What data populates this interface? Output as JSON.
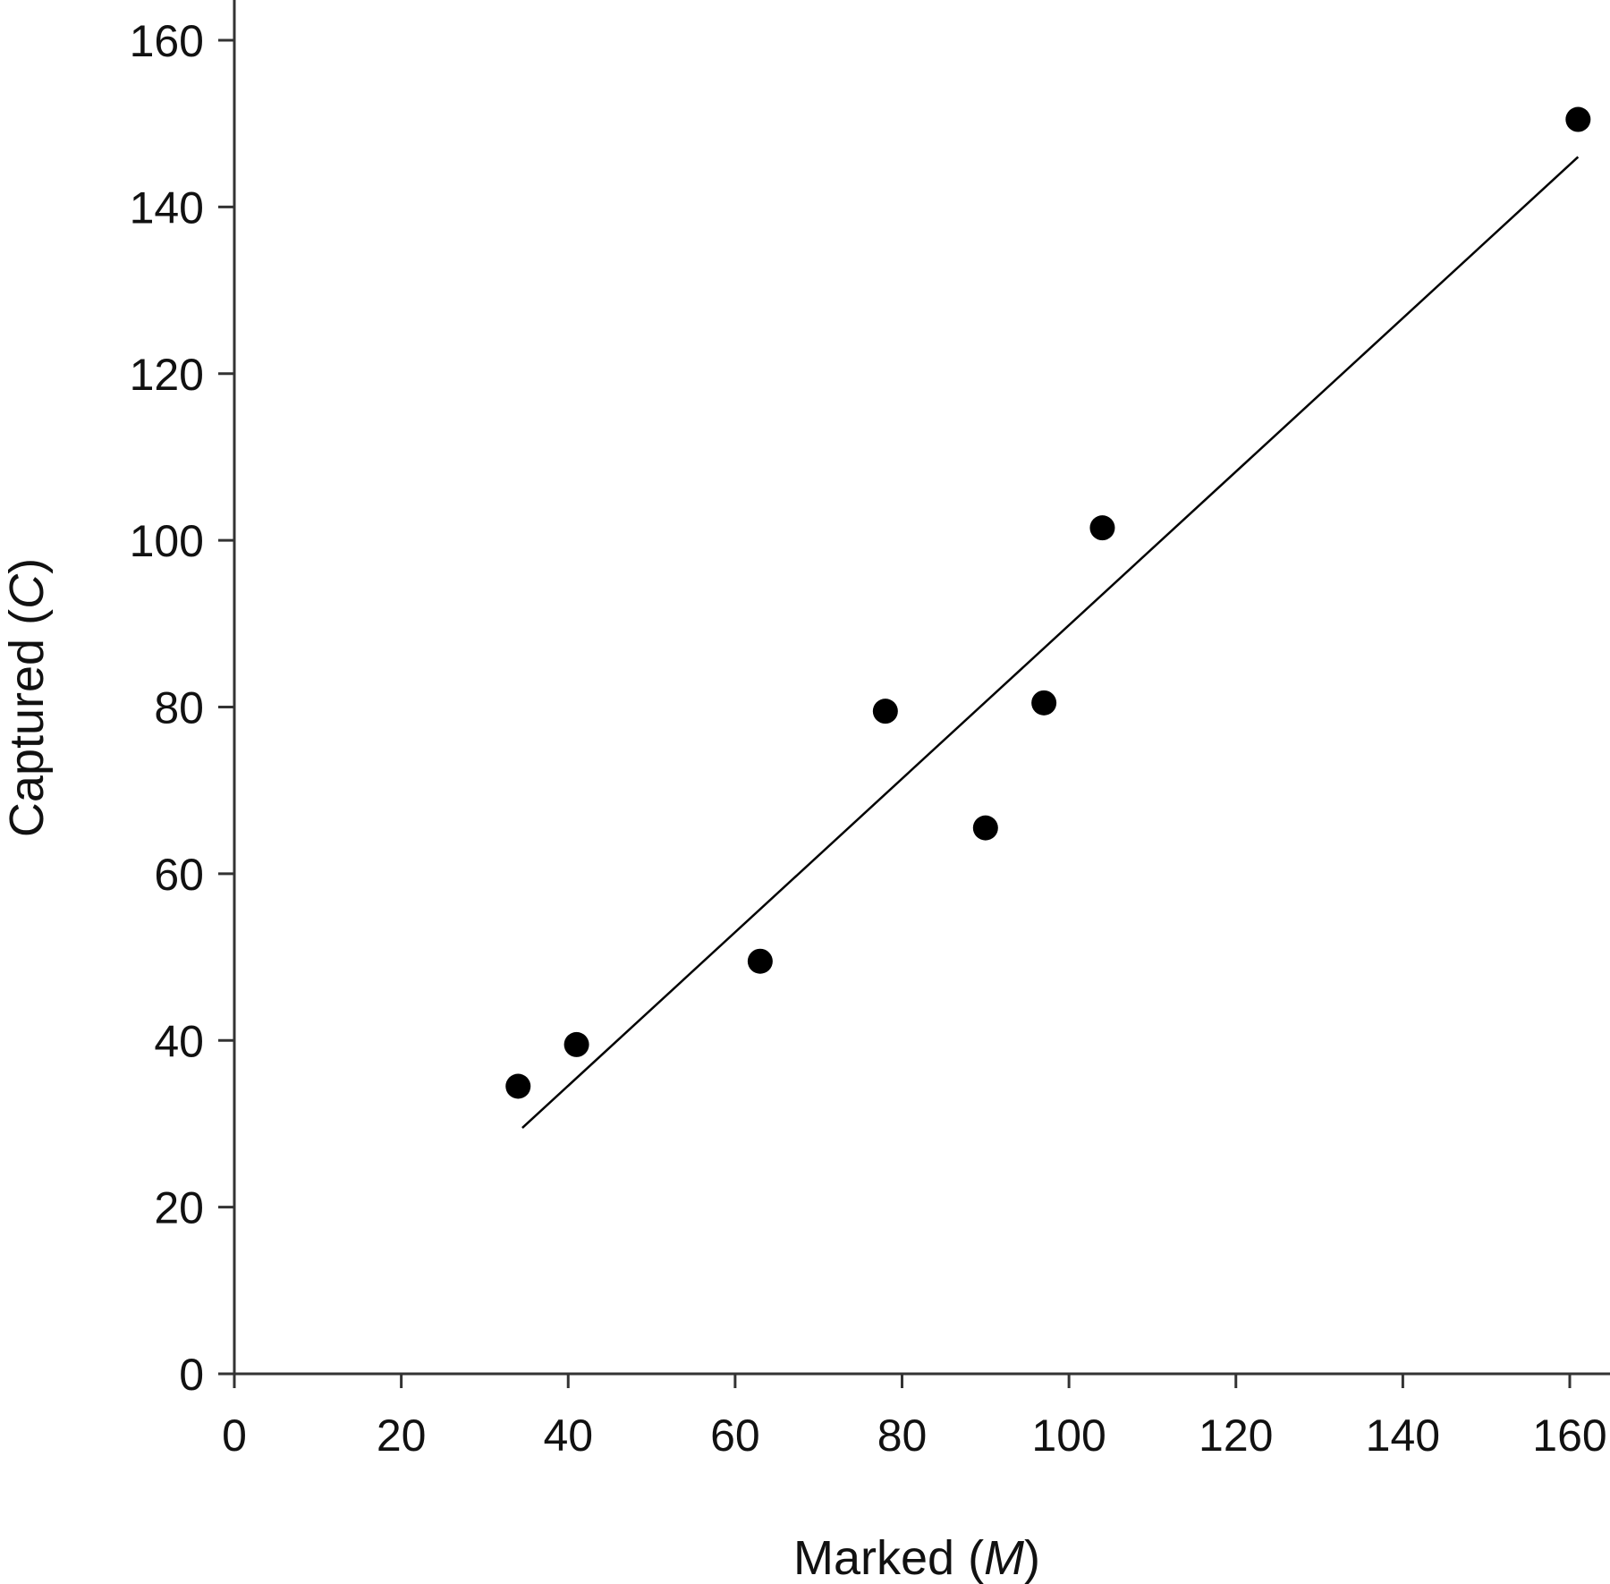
{
  "chart_data": {
    "type": "scatter",
    "title": "",
    "xlabel": {
      "text": "Marked ",
      "var": "M",
      "open": "(",
      "close": ")"
    },
    "ylabel": {
      "text": "Captured ",
      "var": "C",
      "open": "(",
      "close": ")"
    },
    "xlim": [
      0,
      160
    ],
    "ylim": [
      0,
      160
    ],
    "xticks": [
      0,
      20,
      40,
      60,
      80,
      100,
      120,
      140,
      160
    ],
    "yticks": [
      0,
      20,
      40,
      60,
      80,
      100,
      120,
      140,
      160
    ],
    "grid": false,
    "series": [
      {
        "points": [
          {
            "x": 34,
            "y": 34.5
          },
          {
            "x": 41,
            "y": 39.5
          },
          {
            "x": 63,
            "y": 49.5
          },
          {
            "x": 78,
            "y": 79.5
          },
          {
            "x": 90,
            "y": 65.5
          },
          {
            "x": 97,
            "y": 80.5
          },
          {
            "x": 104,
            "y": 101.5
          },
          {
            "x": 161,
            "y": 150.5
          }
        ]
      }
    ],
    "trendline": {
      "x": [
        34.5,
        161
      ],
      "y": [
        29.5,
        146
      ]
    },
    "colors": {
      "points": "#000000",
      "line": "#000000",
      "axis": "#333333"
    }
  }
}
